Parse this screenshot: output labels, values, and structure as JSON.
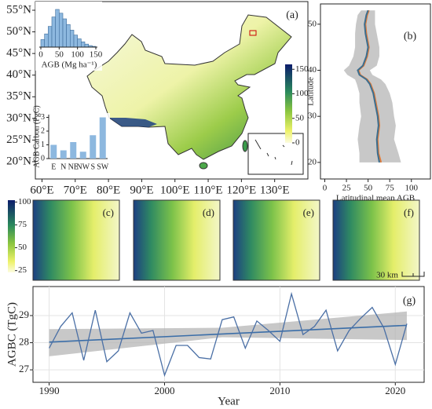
{
  "chart_data": [
    {
      "type": "map",
      "title": "(a)",
      "xlim": [
        58,
        140
      ],
      "ylim": [
        16,
        57
      ],
      "xticks": [
        {
          "value": 60,
          "label": "60°E"
        },
        {
          "value": 70,
          "label": "70°E"
        },
        {
          "value": 80,
          "label": "80°E"
        },
        {
          "value": 90,
          "label": "90°E"
        },
        {
          "value": 100,
          "label": "100°E"
        },
        {
          "value": 110,
          "label": "110°E"
        },
        {
          "value": 120,
          "label": "120°E"
        },
        {
          "value": 130,
          "label": "130°E"
        }
      ],
      "yticks": [
        {
          "value": 20,
          "label": "20°N"
        },
        {
          "value": 25,
          "label": "25°N"
        },
        {
          "value": 30,
          "label": "30°N"
        },
        {
          "value": 35,
          "label": "35°N"
        },
        {
          "value": 40,
          "label": "40°N"
        },
        {
          "value": 45,
          "label": "45°N"
        },
        {
          "value": 50,
          "label": "50°N"
        },
        {
          "value": 55,
          "label": "55°N"
        }
      ],
      "colorbar": {
        "lim": [
          0,
          160
        ],
        "ticks": [
          0,
          50,
          100,
          150
        ]
      }
    },
    {
      "type": "histogram",
      "xlabel": "AGB (Mg ha⁻¹)",
      "color": "#8db8df",
      "bins": [
        0,
        10,
        20,
        30,
        40,
        50,
        60,
        70,
        80,
        90,
        100,
        110,
        120,
        130,
        140,
        150
      ],
      "counts": [
        20,
        35,
        55,
        80,
        100,
        90,
        75,
        60,
        45,
        32,
        22,
        14,
        8,
        4,
        2
      ],
      "xlim": [
        0,
        150
      ],
      "xticks": [
        0,
        50,
        100,
        150
      ]
    },
    {
      "type": "bar",
      "ylabel": "AGB Carbon (PgC)",
      "color": "#8db8df",
      "categories": [
        "E",
        "N",
        "NE",
        "NW",
        "S",
        "SW"
      ],
      "values": [
        1.0,
        0.6,
        1.2,
        0.5,
        1.7,
        3.0
      ],
      "ylim": [
        0,
        3.2
      ],
      "yticks": [
        0,
        1,
        2,
        3
      ]
    },
    {
      "type": "line",
      "orientation": "horizontal",
      "title": "(b)",
      "xlabel": "Latitudinal mean AGB",
      "ylabel": "Latitude",
      "y": [
        20,
        22,
        25,
        28,
        30,
        33,
        35,
        37,
        38,
        39,
        40,
        41,
        43,
        45,
        48,
        50,
        52,
        53
      ],
      "series": [
        {
          "color": "#e07b39",
          "values": [
            65,
            62,
            61,
            63,
            62,
            59,
            57,
            53,
            49,
            41,
            39,
            45,
            49,
            51,
            48,
            47,
            49,
            51
          ]
        },
        {
          "color": "#3b6e8f",
          "values": [
            63,
            61,
            60,
            62,
            61,
            58,
            56,
            52,
            48,
            40,
            38,
            44,
            48,
            50,
            47,
            46,
            48,
            50
          ]
        }
      ],
      "band": {
        "color": "#9a9a9a",
        "lower": [
          40,
          40,
          38,
          40,
          42,
          40,
          40,
          37,
          35,
          26,
          22,
          28,
          33,
          35,
          35,
          36,
          38,
          42
        ],
        "upper": [
          88,
          85,
          80,
          82,
          80,
          78,
          75,
          70,
          65,
          55,
          52,
          60,
          63,
          63,
          60,
          58,
          58,
          58
        ]
      },
      "xlim": [
        -5,
        122
      ],
      "ylim": [
        16.4,
        54.4
      ],
      "xticks": [
        0,
        25,
        50,
        75,
        100
      ],
      "yticks": [
        20,
        30,
        40,
        50
      ],
      "grid": false
    },
    {
      "type": "image",
      "panels": [
        "(c)",
        "(d)",
        "(e)",
        "(f)"
      ],
      "scale_label": "30 km",
      "colorbar": {
        "lim": [
          23,
          102
        ],
        "ticks": [
          25,
          50,
          75,
          100
        ]
      }
    },
    {
      "type": "line",
      "orientation": "vertical",
      "title": "(g)",
      "xlabel": "Year",
      "ylabel": "AGBC (TgC)",
      "x": [
        1990,
        1991,
        1992,
        1993,
        1994,
        1995,
        1996,
        1997,
        1998,
        1999,
        2000,
        2001,
        2002,
        2003,
        2004,
        2005,
        2006,
        2007,
        2008,
        2009,
        2010,
        2011,
        2012,
        2013,
        2014,
        2015,
        2016,
        2017,
        2018,
        2019,
        2020,
        2021
      ],
      "series": [
        {
          "color": "#4a6fa5",
          "values": [
            27.8,
            28.6,
            29.1,
            27.35,
            29.2,
            27.3,
            27.7,
            29.1,
            28.35,
            28.45,
            26.8,
            27.9,
            27.9,
            27.45,
            27.4,
            28.85,
            28.95,
            27.8,
            28.8,
            28.45,
            28.05,
            29.8,
            28.3,
            28.6,
            29.2,
            27.7,
            28.45,
            28.9,
            29.3,
            28.55,
            27.2,
            28.7
          ]
        }
      ],
      "trend": {
        "color": "#3b6ea8",
        "x": [
          1990,
          2021
        ],
        "values": [
          28.02,
          28.64
        ]
      },
      "band": {
        "color": "#b5b5b5",
        "x": [
          1990,
          2005,
          2021
        ],
        "lower": [
          27.5,
          28.2,
          28.1
        ],
        "upper": [
          28.5,
          28.55,
          29.15
        ]
      },
      "xlim": [
        1988.6,
        2022.5
      ],
      "ylim": [
        26.54,
        30.07
      ],
      "xticks": [
        1990,
        2000,
        2010,
        2020
      ],
      "yticks": [
        27,
        28,
        29
      ],
      "grid": true
    }
  ]
}
